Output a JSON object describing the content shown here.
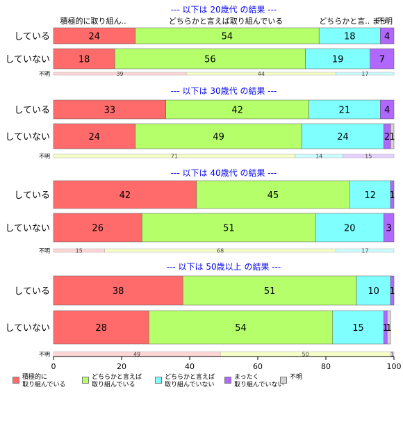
{
  "chart_data": {
    "type": "bar",
    "orientation": "horizontal",
    "stacked": true,
    "xlim": [
      0,
      100
    ],
    "x_ticks": [
      "0",
      "20",
      "40",
      "60",
      "80",
      "100"
    ],
    "top_header_labels": [
      "積極的に取り組ん..",
      "どちらかと言えば取り組んでいる",
      "どちらかと言.. まっ.",
      "不明"
    ],
    "unknown_label": "不明",
    "legend": [
      {
        "label": "積極的に\n取り組んでいる",
        "color": "#ff6b6b"
      },
      {
        "label": "どちらかと言えば\n取り組んでいる",
        "color": "#b5ff6b"
      },
      {
        "label": "どちらかと言えば\n取り組んでいない",
        "color": "#80ffff"
      },
      {
        "label": "まったく\n取り組んでいない",
        "color": "#b068ff"
      },
      {
        "label": "不明",
        "color": "#d3d3d3"
      }
    ],
    "panels": [
      {
        "title": "--- 以下は 20歳代 の結果 ---",
        "rows": [
          {
            "label": "している",
            "values": [
              24,
              54,
              18,
              4,
              0
            ]
          },
          {
            "label": "していない",
            "values": [
              18,
              56,
              19,
              7,
              0
            ]
          }
        ],
        "unknown_values": [
          39,
          44,
          17,
          0,
          0
        ]
      },
      {
        "title": "--- 以下は 30歳代 の結果 ---",
        "rows": [
          {
            "label": "している",
            "values": [
              33,
              42,
              21,
              4,
              0
            ]
          },
          {
            "label": "していない",
            "values": [
              24,
              49,
              24,
              2,
              1
            ]
          }
        ],
        "unknown_values": [
          0,
          71,
          14,
          15,
          0
        ]
      },
      {
        "title": "--- 以下は 40歳代 の結果 ---",
        "rows": [
          {
            "label": "している",
            "values": [
              42,
              45,
              12,
              1,
              0
            ]
          },
          {
            "label": "していない",
            "values": [
              26,
              51,
              20,
              3,
              0
            ]
          }
        ],
        "unknown_values": [
          15,
          68,
          17,
          0,
          0
        ]
      },
      {
        "title": "--- 以下は 50歳以上 の結果 ---",
        "rows": [
          {
            "label": "している",
            "values": [
              38,
              51,
              10,
              1,
              0
            ]
          },
          {
            "label": "していない",
            "values": [
              28,
              54,
              15,
              1,
              1
            ]
          }
        ],
        "unknown_values": [
          49,
          50,
          0,
          1,
          0
        ]
      }
    ]
  }
}
